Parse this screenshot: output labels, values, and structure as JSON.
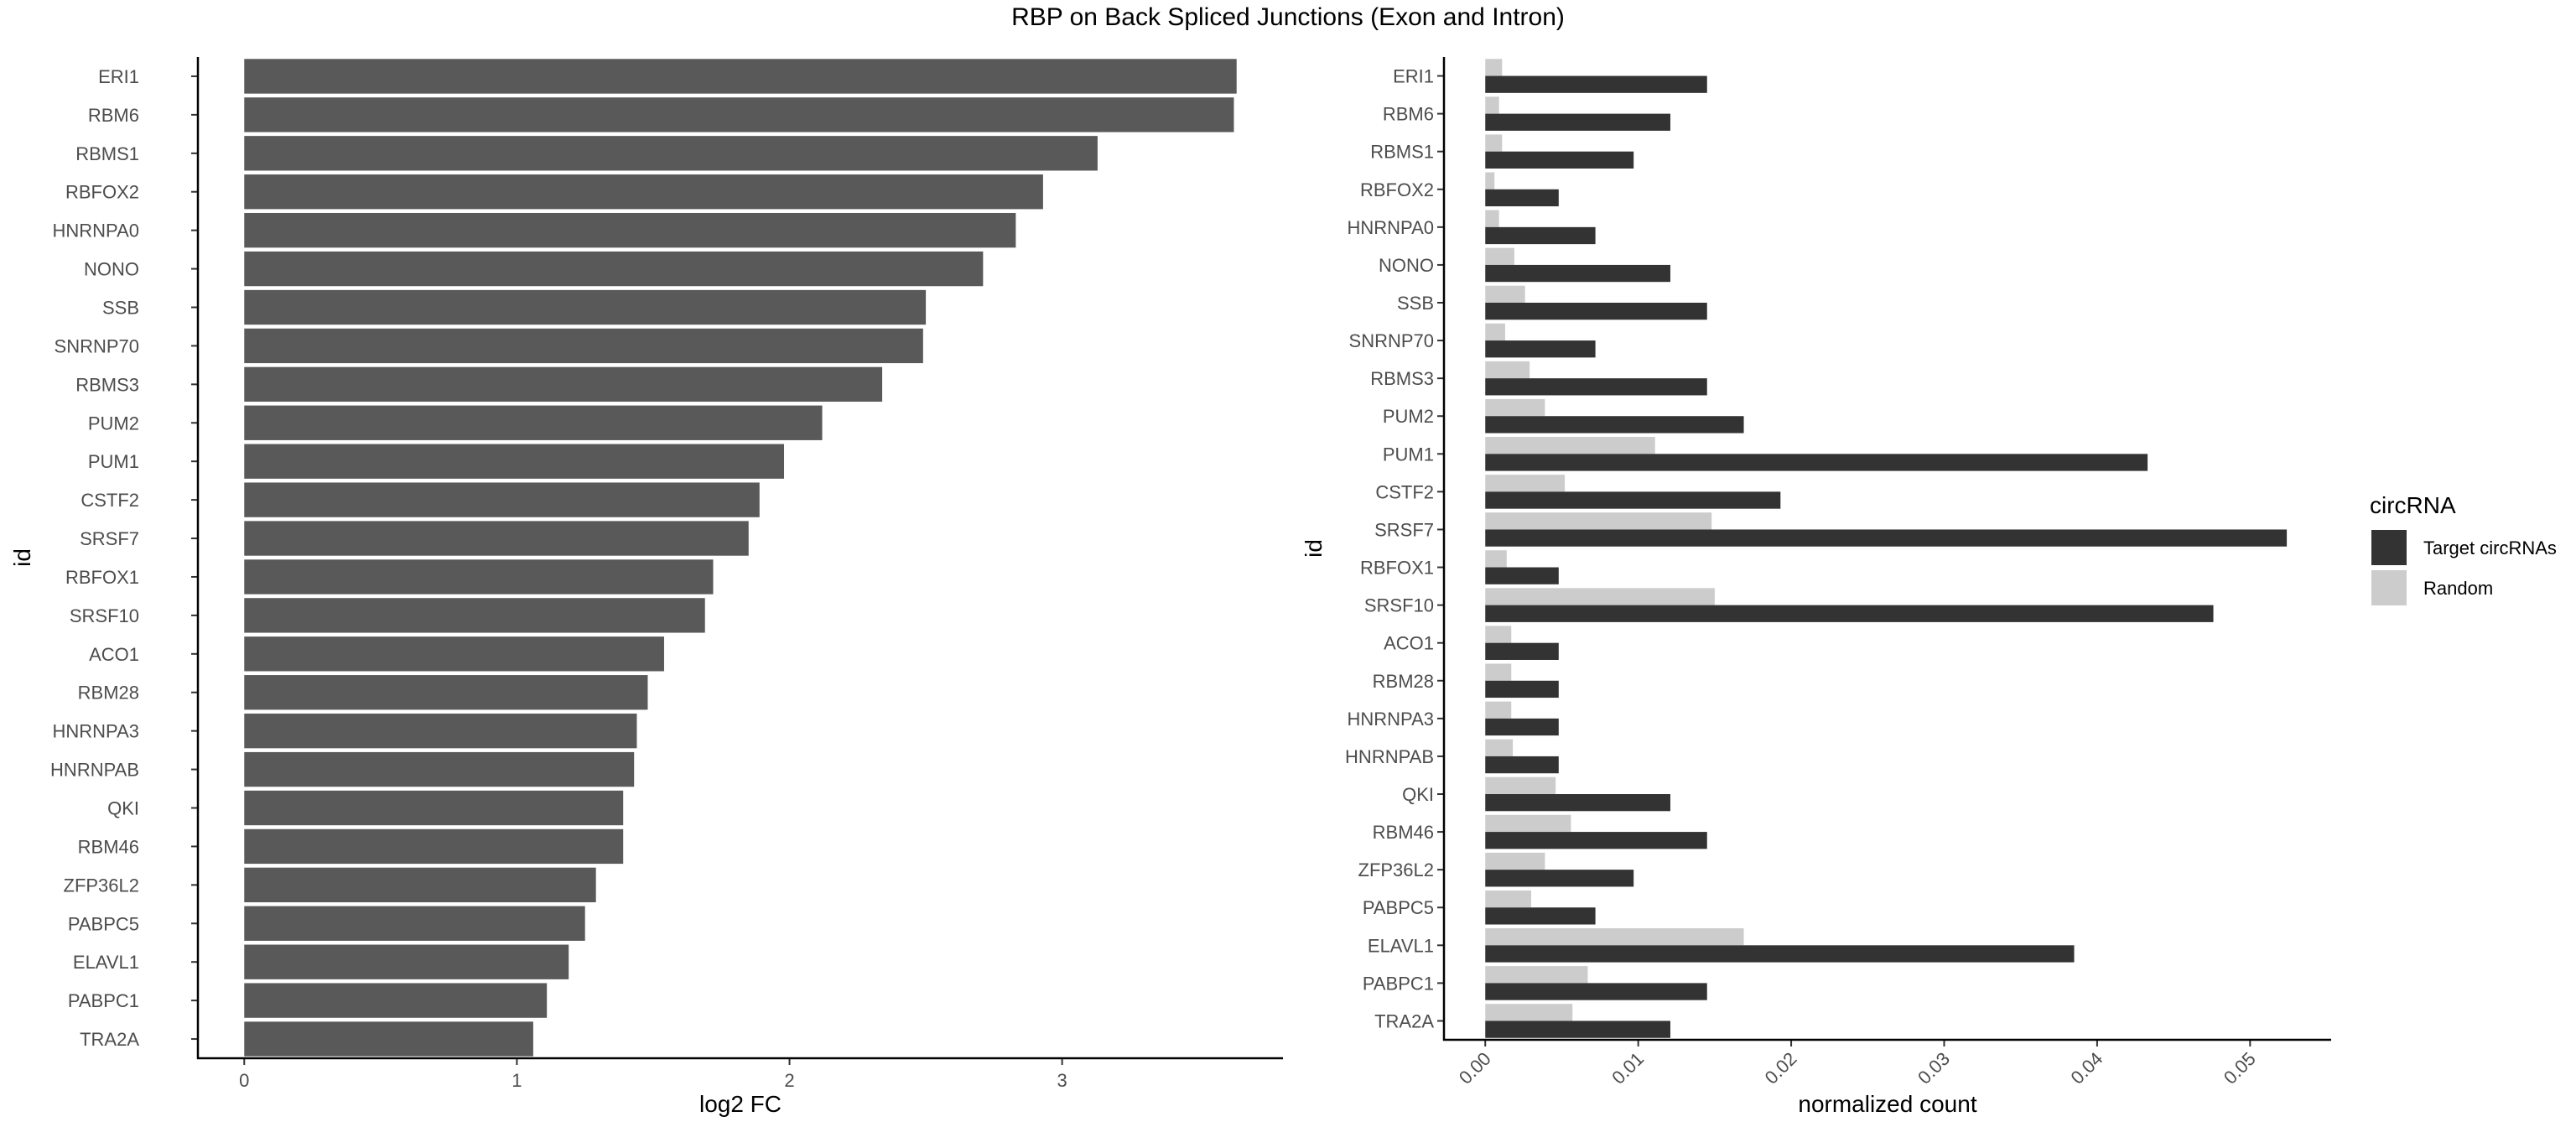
{
  "title": "RBP on Back Spliced Junctions (Exon and Intron)",
  "colors": {
    "left_bar": "#595959",
    "target": "#333333",
    "random": "#cccccc",
    "axis": "#000000",
    "tick_text": "#4d4d4d"
  },
  "chart_data": [
    {
      "type": "bar",
      "orientation": "horizontal",
      "categories": [
        "ERI1",
        "RBM6",
        "RBMS1",
        "RBFOX2",
        "HNRNPA0",
        "NONO",
        "SSB",
        "SNRNP70",
        "RBMS3",
        "PUM2",
        "PUM1",
        "CSTF2",
        "SRSF7",
        "RBFOX1",
        "SRSF10",
        "ACO1",
        "RBM28",
        "HNRNPA3",
        "HNRNPAB",
        "QKI",
        "RBM46",
        "ZFP36L2",
        "PABPC5",
        "ELAVL1",
        "PABPC1",
        "TRA2A"
      ],
      "values": [
        3.64,
        3.63,
        3.13,
        2.93,
        2.83,
        2.71,
        2.5,
        2.49,
        2.34,
        2.12,
        1.98,
        1.89,
        1.85,
        1.72,
        1.69,
        1.54,
        1.48,
        1.44,
        1.43,
        1.39,
        1.39,
        1.29,
        1.25,
        1.19,
        1.11,
        1.06
      ],
      "xlabel": "log2 FC",
      "ylabel": "id",
      "xlim": [
        -0.17,
        3.81
      ],
      "xticks": [
        0,
        1,
        2,
        3
      ],
      "grid": false
    },
    {
      "type": "bar",
      "orientation": "horizontal",
      "categories": [
        "ERI1",
        "RBM6",
        "RBMS1",
        "RBFOX2",
        "HNRNPA0",
        "NONO",
        "SSB",
        "SNRNP70",
        "RBMS3",
        "PUM2",
        "PUM1",
        "CSTF2",
        "SRSF7",
        "RBFOX1",
        "SRSF10",
        "ACO1",
        "RBM28",
        "HNRNPA3",
        "HNRNPAB",
        "QKI",
        "RBM46",
        "ZFP36L2",
        "PABPC5",
        "ELAVL1",
        "PABPC1",
        "TRA2A"
      ],
      "series": [
        {
          "name": "Target circRNAs",
          "values": [
            0.0145,
            0.0121,
            0.0097,
            0.0048,
            0.0072,
            0.0121,
            0.0145,
            0.0072,
            0.0145,
            0.0169,
            0.0433,
            0.0193,
            0.0524,
            0.0048,
            0.0476,
            0.0048,
            0.0048,
            0.0048,
            0.0048,
            0.0121,
            0.0145,
            0.0097,
            0.0072,
            0.0385,
            0.0145,
            0.0121
          ]
        },
        {
          "name": "Random",
          "values": [
            0.0011,
            0.0009,
            0.0011,
            0.0006,
            0.0009,
            0.0019,
            0.0026,
            0.0013,
            0.0029,
            0.0039,
            0.0111,
            0.0052,
            0.0148,
            0.0014,
            0.015,
            0.0017,
            0.0017,
            0.0017,
            0.0018,
            0.0046,
            0.0056,
            0.0039,
            0.003,
            0.0169,
            0.0067,
            0.0057
          ]
        }
      ],
      "xlabel": "normalized count",
      "ylabel": "id",
      "xlim": [
        -0.0027,
        0.0553
      ],
      "xticks": [
        "0.00",
        "0.01",
        "0.02",
        "0.03",
        "0.04",
        "0.05"
      ],
      "legend": {
        "title": "circRNA",
        "position": "right"
      },
      "grid": false
    }
  ]
}
